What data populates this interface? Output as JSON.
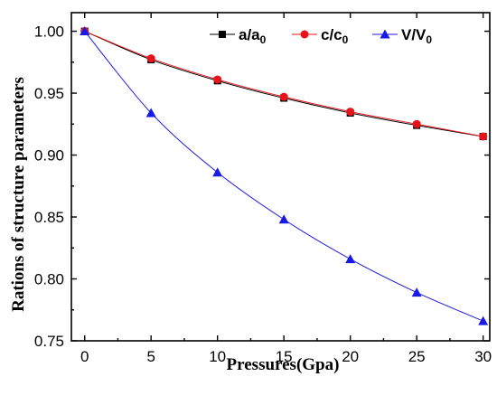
{
  "chart_data": {
    "type": "line",
    "title": "",
    "xlabel": "Pressures(Gpa)",
    "ylabel": "Rations of structure parameters",
    "x": [
      0,
      5,
      10,
      15,
      20,
      25,
      30
    ],
    "xlim": [
      -1,
      30.5
    ],
    "ylim": [
      0.75,
      1.015
    ],
    "x_ticks": [
      0,
      5,
      10,
      15,
      20,
      25,
      30
    ],
    "y_ticks": [
      0.75,
      0.8,
      0.85,
      0.9,
      0.95,
      1.0
    ],
    "x_tick_labels": [
      "0",
      "5",
      "10",
      "15",
      "20",
      "25",
      "30"
    ],
    "y_tick_labels": [
      "0.75",
      "0.80",
      "0.85",
      "0.90",
      "0.95",
      "1.00"
    ],
    "grid": false,
    "legend_position": "top-right",
    "series": [
      {
        "name": "a/a0",
        "name_main": "a/a",
        "name_sub": "0",
        "color": "#000000",
        "marker": "square",
        "values": [
          1.0,
          0.977,
          0.96,
          0.946,
          0.934,
          0.924,
          0.915
        ]
      },
      {
        "name": "c/c0",
        "name_main": "c/c",
        "name_sub": "0",
        "color": "#e8141a",
        "marker": "circle",
        "values": [
          1.0,
          0.978,
          0.961,
          0.947,
          0.935,
          0.925,
          0.915
        ]
      },
      {
        "name": "V/V0",
        "name_main": "V/V",
        "name_sub": "0",
        "color": "#1a1ae6",
        "marker": "triangle",
        "values": [
          1.0,
          0.934,
          0.886,
          0.848,
          0.816,
          0.789,
          0.766
        ]
      }
    ]
  }
}
